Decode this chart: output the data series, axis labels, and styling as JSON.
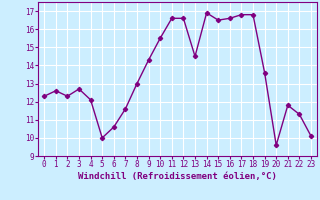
{
  "x": [
    0,
    1,
    2,
    3,
    4,
    5,
    6,
    7,
    8,
    9,
    10,
    11,
    12,
    13,
    14,
    15,
    16,
    17,
    18,
    19,
    20,
    21,
    22,
    23
  ],
  "y": [
    12.3,
    12.6,
    12.3,
    12.7,
    12.1,
    10.0,
    10.6,
    11.6,
    13.0,
    14.3,
    15.5,
    16.6,
    16.6,
    14.5,
    16.9,
    16.5,
    16.6,
    16.8,
    16.8,
    13.6,
    9.6,
    11.8,
    11.3,
    10.1
  ],
  "line_color": "#800080",
  "marker": "D",
  "marker_size": 2.2,
  "bg_color": "#cceeff",
  "grid_color": "#ffffff",
  "xlabel": "Windchill (Refroidissement éolien,°C)",
  "ylim": [
    9,
    17.5
  ],
  "xlim": [
    -0.5,
    23.5
  ],
  "yticks": [
    9,
    10,
    11,
    12,
    13,
    14,
    15,
    16,
    17
  ],
  "xticks": [
    0,
    1,
    2,
    3,
    4,
    5,
    6,
    7,
    8,
    9,
    10,
    11,
    12,
    13,
    14,
    15,
    16,
    17,
    18,
    19,
    20,
    21,
    22,
    23
  ],
  "tick_fontsize": 5.5,
  "xlabel_fontsize": 6.5,
  "line_width": 1.0,
  "text_color": "#800080"
}
